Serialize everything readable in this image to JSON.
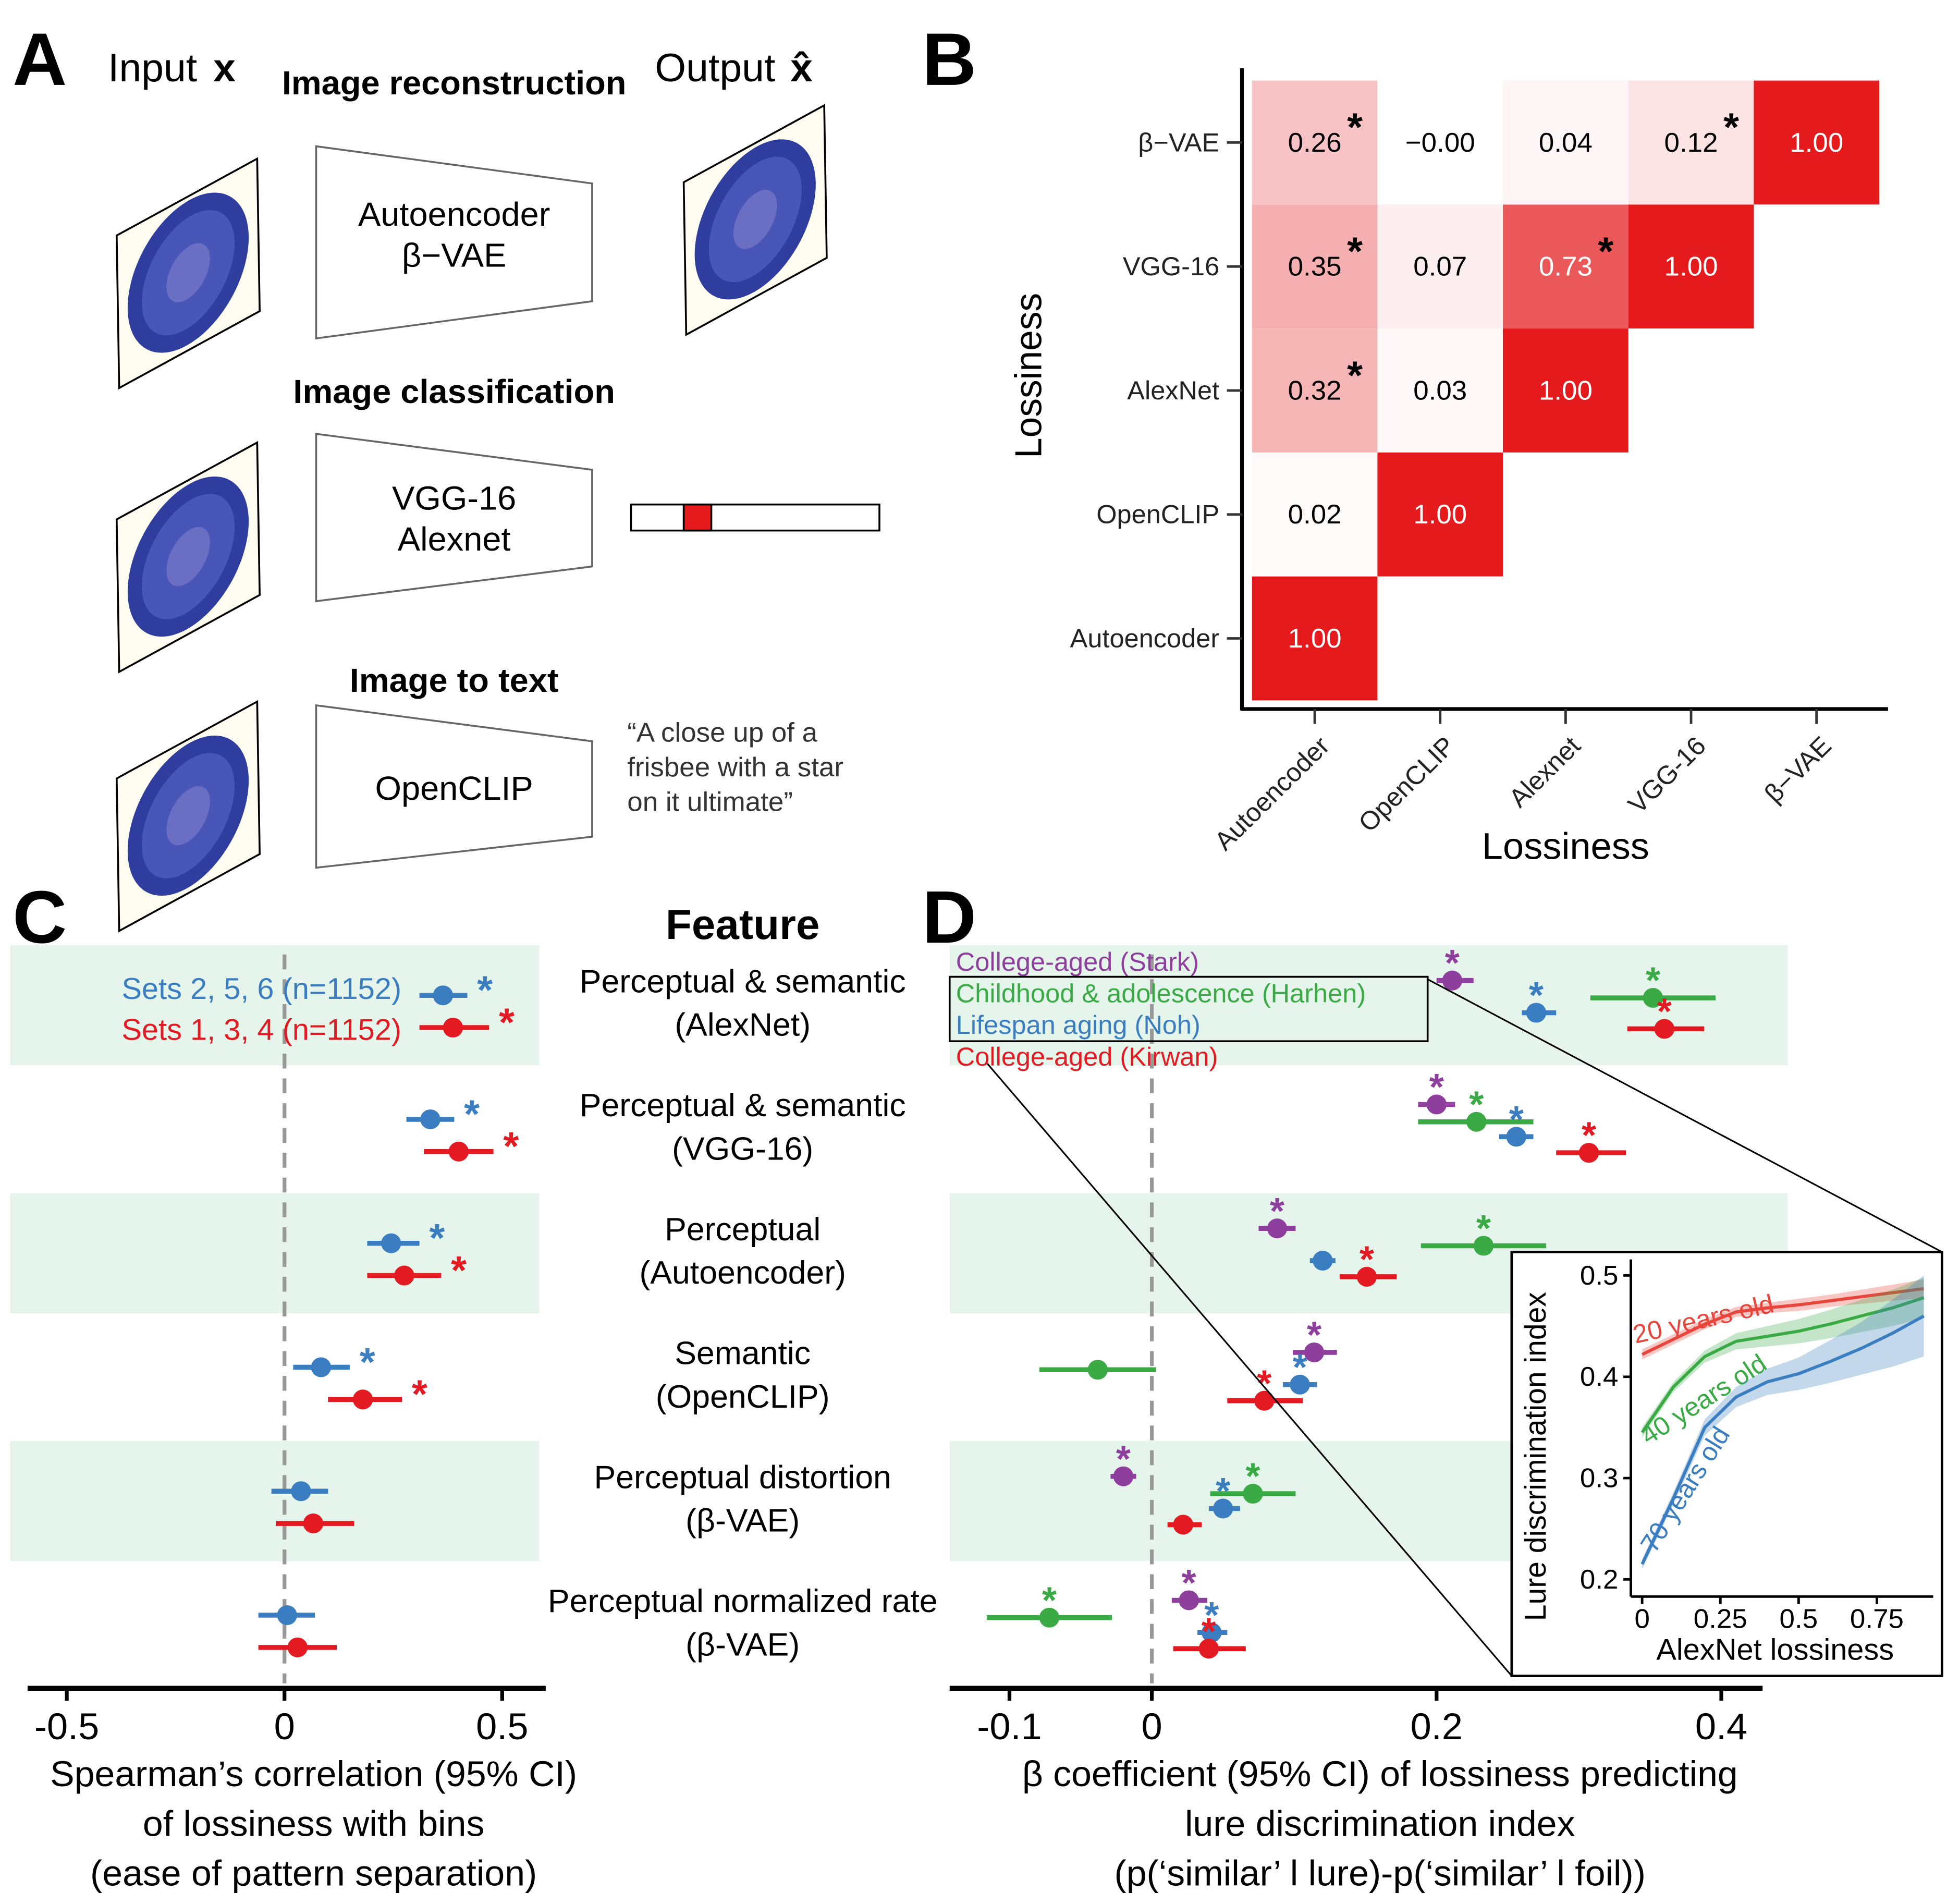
{
  "panel_a": {
    "panel": "A",
    "input_label": "Input",
    "input_symbol": "x",
    "output_label": "Output",
    "output_symbol": "x̂",
    "tasks": [
      {
        "title": "Image reconstruction",
        "models": [
          "Autoencoder",
          "β−VAE"
        ]
      },
      {
        "title": "Image classification",
        "models": [
          "VGG-16",
          "Alexnet"
        ]
      },
      {
        "title": "Image to text",
        "models": [
          "OpenCLIP"
        ],
        "caption": [
          "“A close up of a",
          "frisbee with a star",
          "on it ultimate”"
        ]
      }
    ]
  },
  "chart_data": [
    {
      "panel": "B",
      "type": "heatmap",
      "xlabel": "Lossiness",
      "ylabel": "Lossiness",
      "x_categories": [
        "Autoencoder",
        "OpenCLIP",
        "Alexnet",
        "VGG-16",
        "β−VAE"
      ],
      "y_categories": [
        "Autoencoder",
        "OpenCLIP",
        "AlexNet",
        "VGG-16",
        "β−VAE"
      ],
      "values": [
        [
          1.0,
          null,
          null,
          null,
          null
        ],
        [
          0.02,
          1.0,
          null,
          null,
          null
        ],
        [
          0.32,
          0.03,
          1.0,
          null,
          null
        ],
        [
          0.35,
          0.07,
          0.73,
          1.0,
          null
        ],
        [
          0.26,
          0,
          0.04,
          0.12,
          1.0
        ]
      ],
      "value_labels": [
        [
          "1.00",
          null,
          null,
          null,
          null
        ],
        [
          "0.02",
          "1.00",
          null,
          null,
          null
        ],
        [
          "0.32",
          "0.03",
          "1.00",
          null,
          null
        ],
        [
          "0.35",
          "0.07",
          "0.73",
          "1.00",
          null
        ],
        [
          "0.26",
          "−0.00",
          "0.04",
          "0.12",
          "1.00"
        ]
      ],
      "stars": [
        [
          null,
          null,
          null,
          null,
          null
        ],
        [
          null,
          null,
          null,
          null,
          null
        ],
        [
          "*",
          null,
          null,
          null,
          null
        ],
        [
          "*",
          null,
          "*",
          null,
          null
        ],
        [
          "*",
          null,
          null,
          "*",
          null
        ]
      ],
      "color_low": "#ffffff",
      "color_high": "#e41a1c"
    },
    {
      "panel": "C",
      "type": "forest",
      "category_title": "Feature",
      "categories": [
        [
          "Perceptual & semantic",
          "(AlexNet)"
        ],
        [
          "Perceptual & semantic",
          "(VGG-16)"
        ],
        [
          "Perceptual",
          "(Autoencoder)"
        ],
        [
          "Semantic",
          "(OpenCLIP)"
        ],
        [
          "Perceptual distortion",
          "(β-VAE)"
        ],
        [
          "Perceptual normalized rate",
          "(β-VAE)"
        ]
      ],
      "series": [
        {
          "name": "Sets 2, 5, 6 (n=1152)",
          "color": "#3a7dc0",
          "values": [
            0.364,
            0.335,
            0.245,
            0.084,
            0.038,
            0.006
          ],
          "lower": [
            0.31,
            0.28,
            0.19,
            0.02,
            -0.03,
            -0.06
          ],
          "upper": [
            0.42,
            0.39,
            0.31,
            0.15,
            0.1,
            0.07
          ],
          "stars": [
            "*",
            "*",
            "*",
            "*",
            null,
            null
          ]
        },
        {
          "name": "Sets 1, 3, 4 (n=1152)",
          "color": "#e41a23",
          "values": [
            0.387,
            0.4,
            0.275,
            0.18,
            0.066,
            0.03
          ],
          "lower": [
            0.31,
            0.32,
            0.19,
            0.1,
            -0.02,
            -0.06
          ],
          "upper": [
            0.47,
            0.48,
            0.36,
            0.27,
            0.16,
            0.12
          ],
          "stars": [
            "*",
            "*",
            "*",
            "*",
            null,
            null
          ]
        }
      ],
      "xlim": [
        -0.59,
        0.6
      ],
      "xticks": [
        -0.5,
        0,
        0.5
      ],
      "reference_line": 0,
      "band_color": "#e6f5ec",
      "xlabel": [
        "Spearman’s correlation (95% CI)",
        "of lossiness with bins",
        "(ease of pattern separation)"
      ]
    },
    {
      "panel": "D",
      "type": "forest",
      "series": [
        {
          "name": "College-aged (Stark)",
          "color": "#8e3f9e",
          "values": [
            0.211,
            0.2,
            0.088,
            0.114,
            -0.02,
            0.026
          ],
          "lower": [
            0.2,
            0.187,
            0.075,
            0.099,
            -0.029,
            0.014
          ],
          "upper": [
            0.226,
            0.213,
            0.101,
            0.13,
            -0.011,
            0.039
          ],
          "stars": [
            "*",
            "*",
            "*",
            "*",
            "*",
            "*"
          ]
        },
        {
          "name": "Childhood & adolescence (Harhen)",
          "color": "#3aaa45",
          "values": [
            0.352,
            0.228,
            0.233,
            -0.038,
            0.071,
            -0.072
          ],
          "lower": [
            0.308,
            0.187,
            0.189,
            -0.079,
            0.041,
            -0.116
          ],
          "upper": [
            0.396,
            0.268,
            0.277,
            0.003,
            0.101,
            -0.028
          ],
          "stars": [
            "*",
            "*",
            "*",
            null,
            "*",
            "*"
          ]
        },
        {
          "name": "Lifespan aging (Noh)",
          "color": "#3a7dc0",
          "values": [
            0.27,
            0.256,
            0.12,
            0.104,
            0.05,
            0.042
          ],
          "lower": [
            0.26,
            0.244,
            0.111,
            0.092,
            0.04,
            0.032
          ],
          "upper": [
            0.284,
            0.268,
            0.129,
            0.116,
            0.062,
            0.053
          ],
          "stars": [
            "*",
            "*",
            null,
            "*",
            "*",
            "*"
          ]
        },
        {
          "name": "College-aged (Kirwan)",
          "color": "#e41a23",
          "values": [
            0.36,
            0.307,
            0.151,
            0.079,
            0.022,
            0.04
          ],
          "lower": [
            0.334,
            0.284,
            0.132,
            0.053,
            0.011,
            0.015
          ],
          "upper": [
            0.388,
            0.333,
            0.172,
            0.106,
            0.035,
            0.066
          ],
          "stars": [
            "*",
            "*",
            "*",
            "*",
            null,
            "*"
          ]
        }
      ],
      "xlim": [
        -0.142,
        0.429
      ],
      "xticks": [
        -0.1,
        0,
        0.2,
        0.4
      ],
      "reference_line": 0,
      "band_color": "#e6f5ec",
      "xlabel": [
        "β coefficient (95% CI) of lossiness predicting",
        "lure discrimination index",
        "(p(‘similar’ l lure)-p(‘similar’ l foil))"
      ]
    },
    {
      "type": "line",
      "xlabel": "AlexNet lossiness",
      "ylabel": "Lure discrimination index",
      "x": [
        0,
        0.1,
        0.2,
        0.3,
        0.4,
        0.5,
        0.6,
        0.7,
        0.8,
        0.9
      ],
      "series": [
        {
          "name": "20 years old",
          "color": "#e8453c",
          "values": [
            0.422,
            0.437,
            0.452,
            0.464,
            0.468,
            0.471,
            0.475,
            0.479,
            0.483,
            0.487
          ],
          "lower": [
            0.417,
            0.432,
            0.447,
            0.459,
            0.463,
            0.465,
            0.469,
            0.472,
            0.475,
            0.478
          ],
          "upper": [
            0.427,
            0.442,
            0.457,
            0.469,
            0.473,
            0.477,
            0.481,
            0.486,
            0.491,
            0.496
          ]
        },
        {
          "name": "40 years old",
          "color": "#3aaa45",
          "values": [
            0.345,
            0.39,
            0.42,
            0.435,
            0.44,
            0.445,
            0.452,
            0.46,
            0.468,
            0.478
          ],
          "lower": [
            0.34,
            0.385,
            0.414,
            0.427,
            0.43,
            0.433,
            0.438,
            0.444,
            0.45,
            0.458
          ],
          "upper": [
            0.35,
            0.395,
            0.426,
            0.443,
            0.45,
            0.457,
            0.466,
            0.476,
            0.486,
            0.498
          ]
        },
        {
          "name": "70 years old",
          "color": "#3a7dc0",
          "values": [
            0.215,
            0.28,
            0.35,
            0.38,
            0.395,
            0.403,
            0.415,
            0.428,
            0.443,
            0.46
          ],
          "lower": [
            0.21,
            0.274,
            0.342,
            0.37,
            0.382,
            0.387,
            0.394,
            0.402,
            0.41,
            0.42
          ],
          "upper": [
            0.22,
            0.286,
            0.358,
            0.39,
            0.408,
            0.419,
            0.436,
            0.454,
            0.476,
            0.5
          ]
        }
      ],
      "xlim": [
        -0.02,
        0.93
      ],
      "ylim": [
        0.19,
        0.515
      ],
      "xticks": [
        0,
        0.25,
        0.5,
        0.75
      ],
      "yticks": [
        0.2,
        0.3,
        0.4,
        0.5
      ]
    }
  ]
}
